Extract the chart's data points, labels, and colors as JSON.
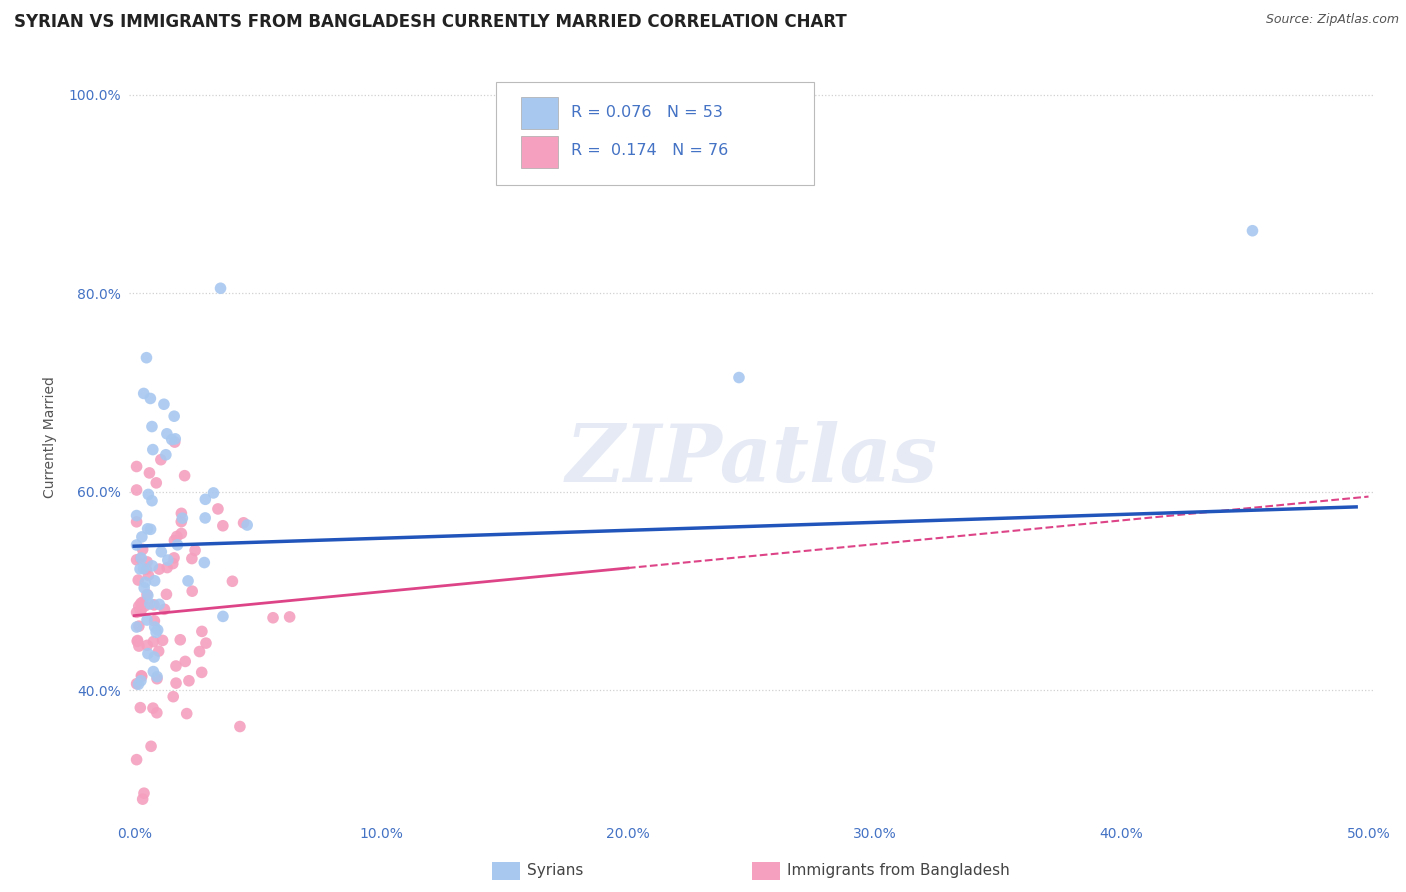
{
  "title": "SYRIAN VS IMMIGRANTS FROM BANGLADESH CURRENTLY MARRIED CORRELATION CHART",
  "source": "Source: ZipAtlas.com",
  "ylabel": "Currently Married",
  "xlabel_syrians": "Syrians",
  "xlabel_bangladesh": "Immigrants from Bangladesh",
  "xlim": [
    -0.002,
    0.502
  ],
  "ylim": [
    0.27,
    1.04
  ],
  "xticks": [
    0.0,
    0.1,
    0.2,
    0.3,
    0.4,
    0.5
  ],
  "xtick_labels": [
    "0.0%",
    "10.0%",
    "20.0%",
    "30.0%",
    "40.0%",
    "50.0%"
  ],
  "yticks": [
    0.4,
    0.6,
    0.8,
    1.0
  ],
  "ytick_labels": [
    "40.0%",
    "60.0%",
    "80.0%",
    "100.0%"
  ],
  "color_syrians": "#A8C8F0",
  "color_bangladesh": "#F4A0BE",
  "line_color_syrians": "#2255BB",
  "line_color_bangladesh": "#DD4488",
  "R_syrians": 0.076,
  "N_syrians": 53,
  "R_bangladesh": 0.174,
  "N_bangladesh": 76,
  "watermark": "ZIPatlas",
  "background_color": "#FFFFFF",
  "grid_color": "#CCCCCC",
  "title_fontsize": 12,
  "axis_label_fontsize": 10,
  "tick_fontsize": 10
}
